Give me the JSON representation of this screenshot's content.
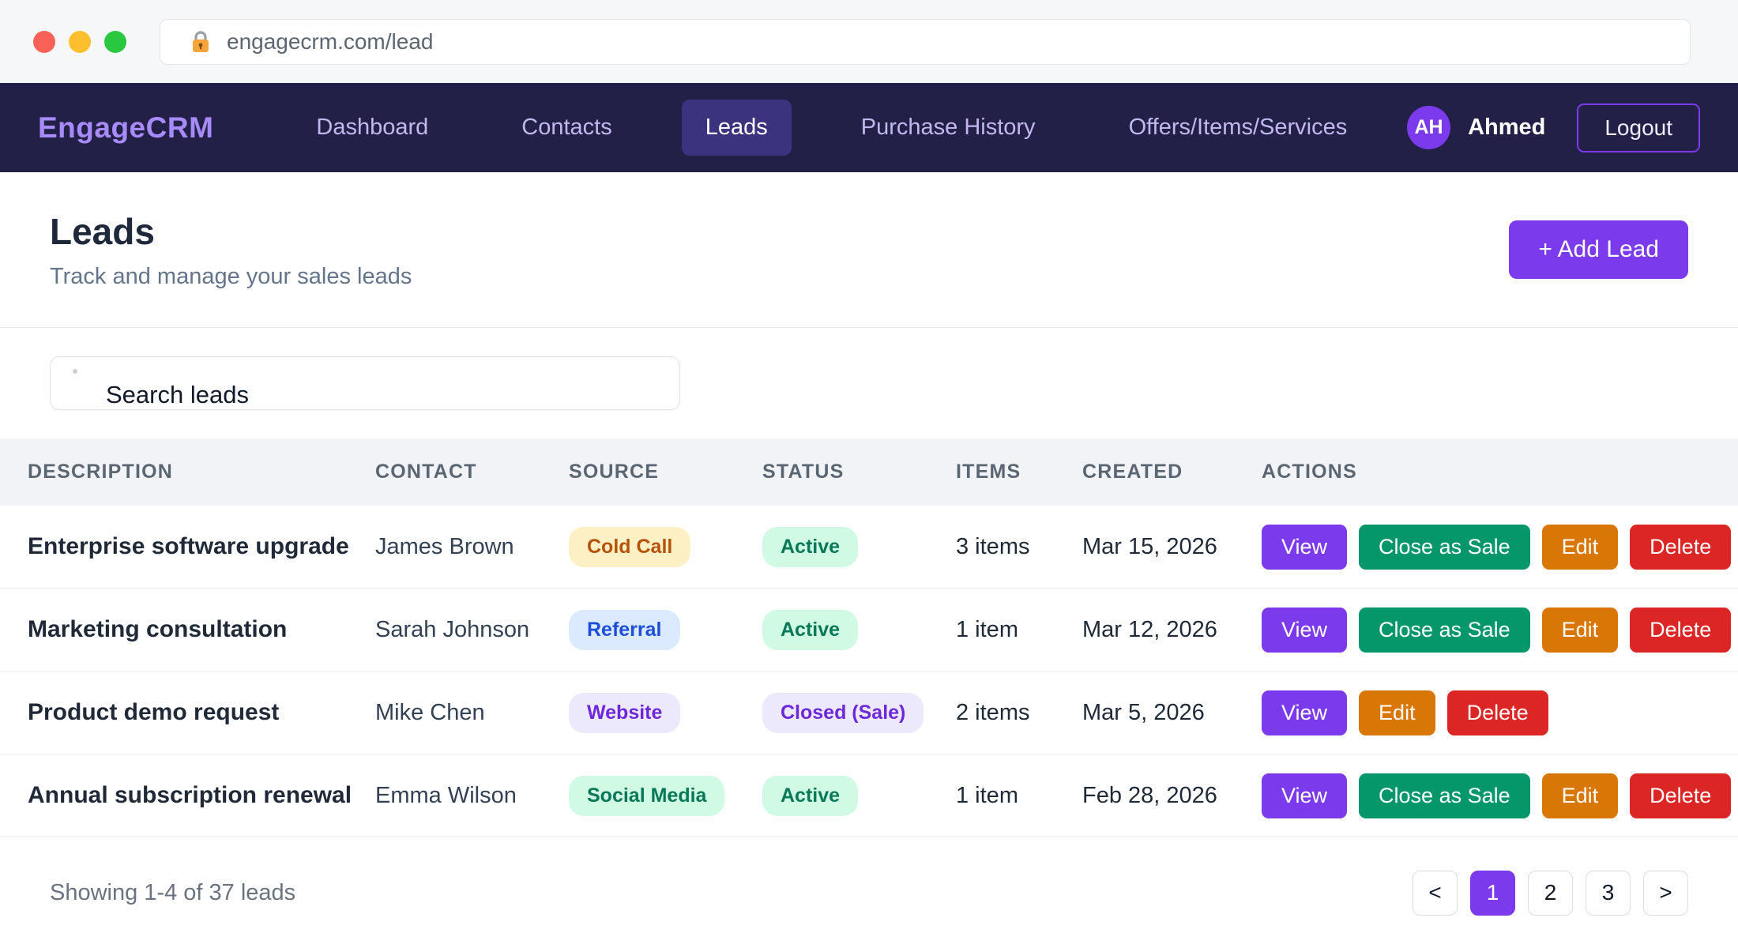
{
  "browser": {
    "url": "engagecrm.com/lead"
  },
  "navbar": {
    "brand": "EngageCRM",
    "items": [
      {
        "label": "Dashboard",
        "active": false
      },
      {
        "label": "Contacts",
        "active": false
      },
      {
        "label": "Leads",
        "active": true
      },
      {
        "label": "Purchase History",
        "active": false
      },
      {
        "label": "Offers/Items/Services",
        "active": false
      }
    ],
    "user": {
      "avatar_initials": "AH",
      "name": "Ahmed"
    },
    "logout_label": "Logout"
  },
  "page_header": {
    "title": "Leads",
    "subtitle": "Track and manage your sales leads",
    "add_button_label": "+ Add Lead"
  },
  "search": {
    "placeholder": "Search leads"
  },
  "table": {
    "columns": [
      "DESCRIPTION",
      "CONTACT",
      "SOURCE",
      "STATUS",
      "ITEMS",
      "CREATED",
      "ACTIONS"
    ],
    "rows": [
      {
        "description": "Enterprise software upgrade",
        "contact": "James Brown",
        "source": {
          "label": "Cold Call",
          "variant": "cold-call"
        },
        "status": {
          "label": "Active",
          "variant": "active"
        },
        "items": "3 items",
        "created": "Mar 15, 2026",
        "actions": [
          {
            "label": "View",
            "variant": "view"
          },
          {
            "label": "Close as Sale",
            "variant": "close"
          },
          {
            "label": "Edit",
            "variant": "edit"
          },
          {
            "label": "Delete",
            "variant": "delete"
          }
        ]
      },
      {
        "description": "Marketing consultation",
        "contact": "Sarah Johnson",
        "source": {
          "label": "Referral",
          "variant": "referral"
        },
        "status": {
          "label": "Active",
          "variant": "active"
        },
        "items": "1 item",
        "created": "Mar 12, 2026",
        "actions": [
          {
            "label": "View",
            "variant": "view"
          },
          {
            "label": "Close as Sale",
            "variant": "close"
          },
          {
            "label": "Edit",
            "variant": "edit"
          },
          {
            "label": "Delete",
            "variant": "delete"
          }
        ]
      },
      {
        "description": "Product demo request",
        "contact": "Mike Chen",
        "source": {
          "label": "Website",
          "variant": "website"
        },
        "status": {
          "label": "Closed (Sale)",
          "variant": "closed"
        },
        "items": "2 items",
        "created": "Mar 5, 2026",
        "actions": [
          {
            "label": "View",
            "variant": "view"
          },
          {
            "label": "Edit",
            "variant": "edit"
          },
          {
            "label": "Delete",
            "variant": "delete"
          }
        ]
      },
      {
        "description": "Annual subscription renewal",
        "contact": "Emma Wilson",
        "source": {
          "label": "Social Media",
          "variant": "social"
        },
        "status": {
          "label": "Active",
          "variant": "active"
        },
        "items": "1 item",
        "created": "Feb 28, 2026",
        "actions": [
          {
            "label": "View",
            "variant": "view"
          },
          {
            "label": "Close as Sale",
            "variant": "close"
          },
          {
            "label": "Edit",
            "variant": "edit"
          },
          {
            "label": "Delete",
            "variant": "delete"
          }
        ]
      }
    ]
  },
  "footer": {
    "summary": "Showing 1-4 of 37 leads",
    "pagination": [
      {
        "label": "<",
        "active": false
      },
      {
        "label": "1",
        "active": true
      },
      {
        "label": "2",
        "active": false
      },
      {
        "label": "3",
        "active": false
      },
      {
        "label": ">",
        "active": false
      }
    ]
  },
  "colors": {
    "accent_purple": "#7c3aed",
    "nav_background": "#232047",
    "nav_active_pill": "#3b337d",
    "brand_text": "#a78bfa",
    "button_green": "#059669",
    "button_orange": "#d97706",
    "button_red": "#dc2626",
    "badge_cold_call_bg": "#fdf0c5",
    "badge_cold_call_text": "#b45309",
    "badge_referral_bg": "#dbeafe",
    "badge_referral_text": "#1d4ed8",
    "badge_purple_bg": "#ece9fc",
    "badge_purple_text": "#6d28d9",
    "badge_green_bg": "#d1fae5",
    "badge_green_text": "#047857"
  }
}
